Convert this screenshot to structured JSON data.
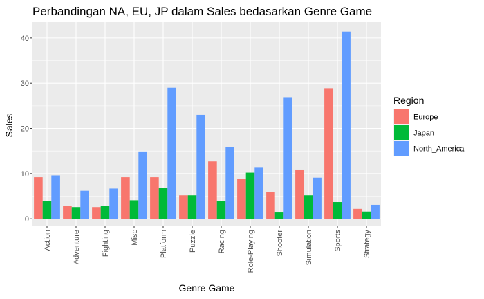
{
  "chart_data": {
    "type": "bar",
    "title": "Perbandingan NA, EU, JP dalam Sales bedasarkan Genre Game",
    "xlabel": "Genre Game",
    "ylabel": "Sales",
    "ylim": [
      -1.5,
      43.5
    ],
    "yticks": [
      0,
      10,
      20,
      30,
      40
    ],
    "ytick_labels": [
      "0",
      "10",
      "20",
      "30",
      "40"
    ],
    "grid": true,
    "legend_position": "right",
    "legend_title": "Region",
    "categories": [
      "Action",
      "Adventure",
      "Fighting",
      "Misc",
      "Platform",
      "Puzzle",
      "Racing",
      "Role-Playing",
      "Shooter",
      "Simulation",
      "Sports",
      "Strategy"
    ],
    "series": [
      {
        "name": "Europe",
        "color": "#F8766D",
        "values": [
          9.2,
          2.8,
          2.6,
          9.2,
          9.2,
          5.2,
          12.7,
          8.8,
          5.9,
          10.9,
          28.9,
          2.2
        ]
      },
      {
        "name": "Japan",
        "color": "#00BA38",
        "values": [
          3.9,
          2.6,
          2.8,
          4.1,
          6.8,
          5.2,
          4.0,
          10.2,
          1.4,
          5.2,
          3.7,
          1.6
        ]
      },
      {
        "name": "North_America",
        "color": "#619CFF",
        "values": [
          9.6,
          6.2,
          6.7,
          14.9,
          29.0,
          23.0,
          15.9,
          11.3,
          26.9,
          9.1,
          41.4,
          3.1
        ]
      }
    ],
    "panel_background": "#EBEBEB",
    "gridline_color": "#FFFFFF"
  }
}
